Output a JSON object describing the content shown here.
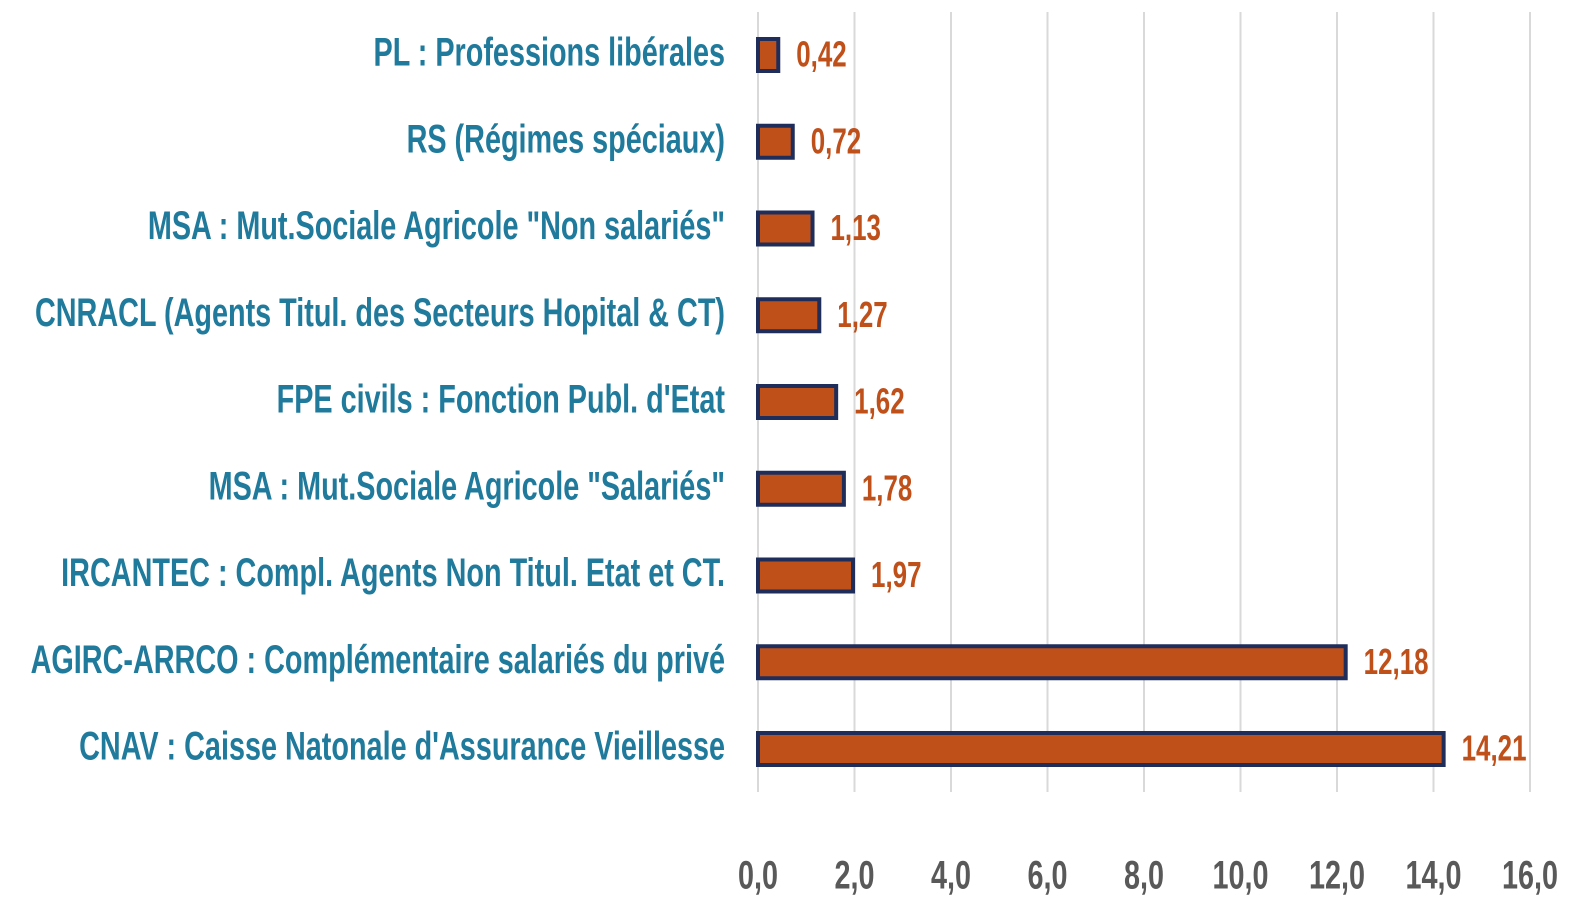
{
  "chart_data": {
    "type": "barh",
    "categories": [
      "PL : Professions libérales",
      "RS (Régimes spéciaux)",
      "MSA : Mut.Sociale Agricole \"Non salariés\"",
      "CNRACL (Agents Titul. des Secteurs Hopital & CT)",
      "FPE civils : Fonction Publ. d'Etat",
      "MSA : Mut.Sociale Agricole \"Salariés\"",
      "IRCANTEC : Compl. Agents Non Titul. Etat et CT.",
      "AGIRC-ARRCO : Complémentaire salariés du privé",
      "CNAV : Caisse Natonale d'Assurance Vieillesse"
    ],
    "values": [
      0.42,
      0.72,
      1.13,
      1.27,
      1.62,
      1.78,
      1.97,
      12.18,
      14.21
    ],
    "value_labels": [
      "0,42",
      "0,72",
      "1,13",
      "1,27",
      "1,62",
      "1,78",
      "1,97",
      "12,18",
      "14,21"
    ],
    "color": "#c0501a",
    "edge_color": "#1f2d5a",
    "xlim": [
      0,
      16
    ],
    "xticks": [
      {
        "value": 0,
        "label": "0,0"
      },
      {
        "value": 2,
        "label": "2,0"
      },
      {
        "value": 4,
        "label": "4,0"
      },
      {
        "value": 6,
        "label": "6,0"
      },
      {
        "value": 8,
        "label": "8,0"
      },
      {
        "value": 10,
        "label": "10,0"
      },
      {
        "value": 12,
        "label": "12,0"
      },
      {
        "value": 14,
        "label": "14,0"
      },
      {
        "value": 16,
        "label": "16,0"
      }
    ],
    "grid": true
  }
}
